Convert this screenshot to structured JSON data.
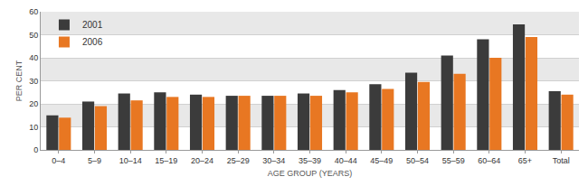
{
  "chart_data": {
    "type": "bar",
    "x_label": "AGE GROUP (YEARS)",
    "y_label": "PER CENT",
    "categories": [
      "0–4",
      "5–9",
      "10–14",
      "15–19",
      "20–24",
      "25–29",
      "30–34",
      "35–39",
      "40–44",
      "45–49",
      "50–54",
      "55–59",
      "60–64",
      "65+",
      "Total"
    ],
    "series": [
      {
        "name": "2001",
        "color": "#3b3b3b",
        "values": [
          15,
          21,
          24.5,
          25,
          24,
          23.5,
          23.5,
          24.5,
          26,
          28.5,
          33.5,
          41,
          48,
          54.5,
          25.5
        ]
      },
      {
        "name": "2006",
        "color": "#e87722",
        "values": [
          14,
          19,
          21.5,
          23,
          23,
          23.5,
          23.5,
          23.5,
          25,
          26.5,
          29.5,
          33,
          40,
          49,
          24
        ]
      }
    ],
    "ylim": [
      0,
      60
    ],
    "yticks": [
      0,
      10,
      20,
      30,
      40,
      50,
      60
    ],
    "grid": true,
    "legend": "top-left"
  }
}
